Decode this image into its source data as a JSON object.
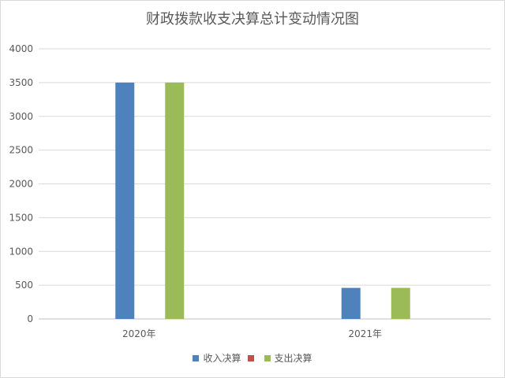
{
  "chart_data": {
    "type": "bar",
    "title": "财政拨款收支决算总计变动情况图",
    "categories": [
      "2020年",
      "2021年"
    ],
    "series": [
      {
        "name": "收入决算",
        "values": [
          3500,
          460
        ],
        "color": "#4f81bd"
      },
      {
        "name": "",
        "values": [
          0,
          0
        ],
        "color": "#c0504d"
      },
      {
        "name": "支出决算",
        "values": [
          3500,
          460
        ],
        "color": "#9bbb59"
      }
    ],
    "ylim": [
      0,
      4000
    ],
    "yticks": [
      0,
      500,
      1000,
      1500,
      2000,
      2500,
      3000,
      3500,
      4000
    ],
    "grid": true,
    "legend": "bottom",
    "xlabel": "",
    "ylabel": ""
  }
}
